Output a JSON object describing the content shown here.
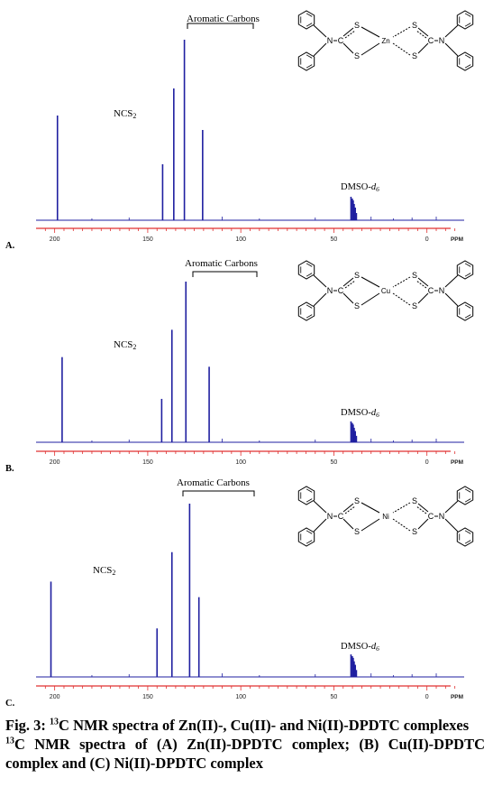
{
  "figure": {
    "fig_label": "Fig. 3:",
    "title_sup": "13",
    "title_text": "C NMR spectra of Zn(II)-, Cu(II)- and Ni(II)-DPDTC complexes",
    "desc_sup": "13",
    "desc_text": "C NMR spectra of (A) Zn(II)-DPDTC complex; (B) Cu(II)-DPDTC complex and  (C) Ni(II)-DPDTC complex"
  },
  "colors": {
    "spectrum": "#1f1fa0",
    "axis": "#e03030",
    "text": "#000000"
  },
  "chart_data": [
    {
      "type": "line",
      "panel_label": "A.",
      "metal": "Zn",
      "xlabel": "PPM",
      "xlim": [
        210,
        -20
      ],
      "xticks": [
        200,
        150,
        100,
        50,
        0
      ],
      "annotations": {
        "ncs2": "NCS2",
        "aromatic": "Aromatic Carbons",
        "dmso": "DMSO-d6"
      },
      "peaks": [
        {
          "ppm": 198.5,
          "h": 0.58
        },
        {
          "ppm": 142.0,
          "h": 0.31
        },
        {
          "ppm": 136.0,
          "h": 0.73
        },
        {
          "ppm": 130.3,
          "h": 1.0
        },
        {
          "ppm": 120.5,
          "h": 0.5
        },
        {
          "ppm": 40.8,
          "h": 0.13
        },
        {
          "ppm": 40.1,
          "h": 0.12
        },
        {
          "ppm": 39.6,
          "h": 0.11
        },
        {
          "ppm": 39.1,
          "h": 0.09
        },
        {
          "ppm": 38.5,
          "h": 0.07
        },
        {
          "ppm": 37.9,
          "h": 0.04
        }
      ]
    },
    {
      "type": "line",
      "panel_label": "B.",
      "metal": "Cu",
      "xlabel": "PPM",
      "xlim": [
        210,
        -20
      ],
      "xticks": [
        200,
        150,
        100,
        50,
        0
      ],
      "annotations": {
        "ncs2": "NCS2",
        "aromatic": "Aromatic Carbons",
        "dmso": "DMSO-d6"
      },
      "peaks": [
        {
          "ppm": 196.0,
          "h": 0.53
        },
        {
          "ppm": 142.5,
          "h": 0.27
        },
        {
          "ppm": 137.0,
          "h": 0.7
        },
        {
          "ppm": 129.5,
          "h": 1.0
        },
        {
          "ppm": 117.0,
          "h": 0.47
        },
        {
          "ppm": 40.8,
          "h": 0.13
        },
        {
          "ppm": 40.1,
          "h": 0.12
        },
        {
          "ppm": 39.6,
          "h": 0.11
        },
        {
          "ppm": 39.1,
          "h": 0.09
        },
        {
          "ppm": 38.5,
          "h": 0.07
        },
        {
          "ppm": 37.9,
          "h": 0.04
        }
      ]
    },
    {
      "type": "line",
      "panel_label": "C.",
      "metal": "Ni",
      "xlabel": "PPM",
      "xlim": [
        210,
        -20
      ],
      "xticks": [
        200,
        150,
        100,
        50,
        0
      ],
      "annotations": {
        "ncs2": "NCS2",
        "aromatic": "Aromatic Carbons",
        "dmso": "DMSO-d6"
      },
      "peaks": [
        {
          "ppm": 202.0,
          "h": 0.55
        },
        {
          "ppm": 145.0,
          "h": 0.28
        },
        {
          "ppm": 137.0,
          "h": 0.72
        },
        {
          "ppm": 127.5,
          "h": 1.0
        },
        {
          "ppm": 122.5,
          "h": 0.46
        },
        {
          "ppm": 40.8,
          "h": 0.13
        },
        {
          "ppm": 40.1,
          "h": 0.12
        },
        {
          "ppm": 39.6,
          "h": 0.11
        },
        {
          "ppm": 39.1,
          "h": 0.09
        },
        {
          "ppm": 38.5,
          "h": 0.07
        },
        {
          "ppm": 37.9,
          "h": 0.04
        }
      ]
    }
  ]
}
